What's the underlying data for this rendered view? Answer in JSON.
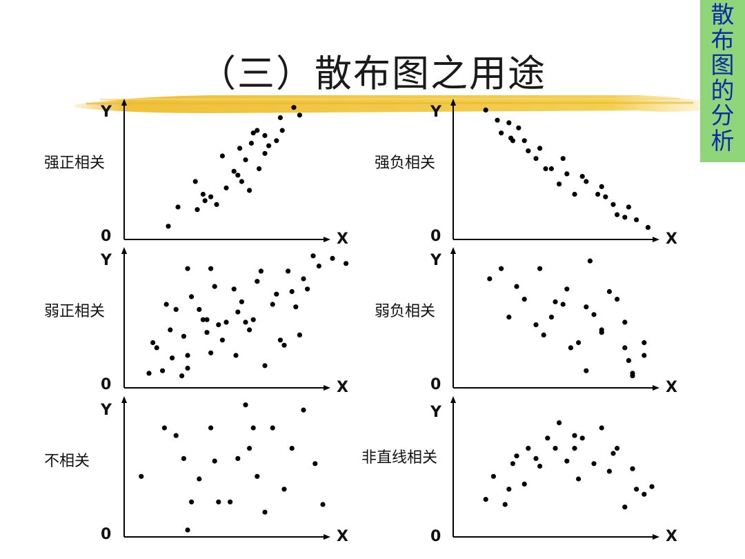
{
  "slide": {
    "title": "（三）散布图之用途",
    "side_tab": "散布图的分析"
  },
  "chart_data": [
    {
      "type": "scatter",
      "title": "强正相关",
      "xlabel": "X",
      "ylabel": "Y",
      "origin_label": "0",
      "points": [
        [
          0.2,
          0.05
        ],
        [
          0.25,
          0.2
        ],
        [
          0.35,
          0.18
        ],
        [
          0.34,
          0.4
        ],
        [
          0.38,
          0.3
        ],
        [
          0.42,
          0.28
        ],
        [
          0.39,
          0.25
        ],
        [
          0.45,
          0.22
        ],
        [
          0.5,
          0.35
        ],
        [
          0.54,
          0.48
        ],
        [
          0.48,
          0.6
        ],
        [
          0.56,
          0.45
        ],
        [
          0.58,
          0.4
        ],
        [
          0.62,
          0.33
        ],
        [
          0.67,
          0.5
        ],
        [
          0.6,
          0.57
        ],
        [
          0.63,
          0.7
        ],
        [
          0.7,
          0.62
        ],
        [
          0.72,
          0.68
        ],
        [
          0.7,
          0.76
        ],
        [
          0.76,
          0.72
        ],
        [
          0.79,
          0.8
        ],
        [
          0.88,
          0.92
        ],
        [
          0.78,
          0.9
        ],
        [
          0.85,
          0.98
        ],
        [
          0.66,
          0.8
        ],
        [
          0.57,
          0.66
        ],
        [
          0.64,
          0.78
        ]
      ]
    },
    {
      "type": "scatter",
      "title": "强负相关",
      "xlabel": "X",
      "ylabel": "Y",
      "origin_label": "0",
      "points": [
        [
          0.14,
          0.96
        ],
        [
          0.2,
          0.88
        ],
        [
          0.22,
          0.78
        ],
        [
          0.26,
          0.86
        ],
        [
          0.28,
          0.72
        ],
        [
          0.31,
          0.82
        ],
        [
          0.34,
          0.72
        ],
        [
          0.36,
          0.64
        ],
        [
          0.4,
          0.58
        ],
        [
          0.42,
          0.66
        ],
        [
          0.45,
          0.5
        ],
        [
          0.48,
          0.5
        ],
        [
          0.52,
          0.38
        ],
        [
          0.54,
          0.58
        ],
        [
          0.56,
          0.46
        ],
        [
          0.6,
          0.3
        ],
        [
          0.64,
          0.44
        ],
        [
          0.66,
          0.4
        ],
        [
          0.72,
          0.3
        ],
        [
          0.76,
          0.28
        ],
        [
          0.8,
          0.22
        ],
        [
          0.82,
          0.14
        ],
        [
          0.86,
          0.12
        ],
        [
          0.88,
          0.2
        ],
        [
          0.92,
          0.1
        ],
        [
          0.98,
          0.04
        ],
        [
          0.27,
          0.74
        ],
        [
          0.74,
          0.36
        ]
      ]
    },
    {
      "type": "scatter",
      "title": "弱正相关",
      "xlabel": "X",
      "ylabel": "Y",
      "origin_label": "0",
      "points": [
        [
          0.1,
          0.06
        ],
        [
          0.12,
          0.3
        ],
        [
          0.14,
          0.26
        ],
        [
          0.17,
          0.08
        ],
        [
          0.19,
          0.6
        ],
        [
          0.21,
          0.4
        ],
        [
          0.22,
          0.18
        ],
        [
          0.24,
          0.56
        ],
        [
          0.27,
          0.04
        ],
        [
          0.28,
          0.35
        ],
        [
          0.3,
          0.1
        ],
        [
          0.3,
          0.2
        ],
        [
          0.3,
          0.88
        ],
        [
          0.32,
          0.66
        ],
        [
          0.36,
          0.56
        ],
        [
          0.38,
          0.48
        ],
        [
          0.4,
          0.38
        ],
        [
          0.42,
          0.22
        ],
        [
          0.4,
          0.48
        ],
        [
          0.42,
          0.88
        ],
        [
          0.44,
          0.74
        ],
        [
          0.46,
          0.44
        ],
        [
          0.48,
          0.32
        ],
        [
          0.5,
          0.46
        ],
        [
          0.54,
          0.72
        ],
        [
          0.55,
          0.2
        ],
        [
          0.56,
          0.54
        ],
        [
          0.58,
          0.62
        ],
        [
          0.6,
          0.46
        ],
        [
          0.62,
          0.4
        ],
        [
          0.64,
          0.48
        ],
        [
          0.66,
          0.78
        ],
        [
          0.68,
          0.86
        ],
        [
          0.7,
          0.12
        ],
        [
          0.74,
          0.6
        ],
        [
          0.76,
          0.68
        ],
        [
          0.78,
          0.32
        ],
        [
          0.8,
          0.28
        ],
        [
          0.82,
          0.86
        ],
        [
          0.84,
          0.7
        ],
        [
          0.86,
          0.58
        ],
        [
          0.88,
          0.36
        ],
        [
          0.9,
          0.8
        ],
        [
          0.92,
          0.72
        ],
        [
          0.95,
          0.98
        ],
        [
          0.98,
          0.9
        ],
        [
          1.05,
          0.96
        ],
        [
          1.12,
          0.92
        ]
      ]
    },
    {
      "type": "scatter",
      "title": "弱负相关",
      "xlabel": "X",
      "ylabel": "Y",
      "origin_label": "0",
      "points": [
        [
          0.16,
          0.8
        ],
        [
          0.22,
          0.88
        ],
        [
          0.26,
          0.5
        ],
        [
          0.3,
          0.74
        ],
        [
          0.34,
          0.64
        ],
        [
          0.4,
          0.44
        ],
        [
          0.42,
          0.88
        ],
        [
          0.44,
          0.36
        ],
        [
          0.48,
          0.5
        ],
        [
          0.5,
          0.62
        ],
        [
          0.54,
          0.6
        ],
        [
          0.56,
          0.72
        ],
        [
          0.58,
          0.26
        ],
        [
          0.62,
          0.3
        ],
        [
          0.66,
          0.08
        ],
        [
          0.66,
          0.58
        ],
        [
          0.68,
          0.94
        ],
        [
          0.7,
          0.52
        ],
        [
          0.74,
          0.4
        ],
        [
          0.74,
          0.38
        ],
        [
          0.78,
          0.7
        ],
        [
          0.82,
          0.64
        ],
        [
          0.86,
          0.46
        ],
        [
          0.86,
          0.26
        ],
        [
          0.88,
          0.16
        ],
        [
          0.9,
          0.06
        ],
        [
          0.9,
          0.04
        ],
        [
          0.96,
          0.2
        ],
        [
          0.96,
          0.3
        ]
      ]
    },
    {
      "type": "scatter",
      "title": "不相关",
      "xlabel": "X",
      "ylabel": "Y",
      "origin_label": "0",
      "points": [
        [
          0.06,
          0.42
        ],
        [
          0.18,
          0.8
        ],
        [
          0.24,
          0.74
        ],
        [
          0.28,
          0.56
        ],
        [
          0.3,
          0.0
        ],
        [
          0.32,
          0.22
        ],
        [
          0.36,
          0.4
        ],
        [
          0.42,
          0.8
        ],
        [
          0.44,
          0.54
        ],
        [
          0.46,
          0.22
        ],
        [
          0.52,
          0.22
        ],
        [
          0.56,
          0.56
        ],
        [
          0.6,
          0.98
        ],
        [
          0.62,
          0.64
        ],
        [
          0.64,
          0.8
        ],
        [
          0.66,
          0.42
        ],
        [
          0.7,
          0.14
        ],
        [
          0.74,
          0.8
        ],
        [
          0.8,
          0.32
        ],
        [
          0.84,
          0.64
        ],
        [
          0.9,
          0.94
        ],
        [
          0.96,
          0.52
        ],
        [
          1.0,
          0.2
        ]
      ]
    },
    {
      "type": "scatter",
      "title": "非直线相关",
      "xlabel": "X",
      "ylabel": "Y",
      "origin_label": "0",
      "points": [
        [
          0.14,
          0.24
        ],
        [
          0.18,
          0.42
        ],
        [
          0.24,
          0.2
        ],
        [
          0.26,
          0.32
        ],
        [
          0.28,
          0.52
        ],
        [
          0.3,
          0.58
        ],
        [
          0.34,
          0.36
        ],
        [
          0.36,
          0.64
        ],
        [
          0.4,
          0.56
        ],
        [
          0.42,
          0.5
        ],
        [
          0.46,
          0.72
        ],
        [
          0.5,
          0.64
        ],
        [
          0.52,
          0.84
        ],
        [
          0.56,
          0.54
        ],
        [
          0.6,
          0.64
        ],
        [
          0.62,
          0.4
        ],
        [
          0.64,
          0.72
        ],
        [
          0.7,
          0.52
        ],
        [
          0.74,
          0.8
        ],
        [
          0.78,
          0.46
        ],
        [
          0.8,
          0.6
        ],
        [
          0.82,
          0.64
        ],
        [
          0.86,
          0.18
        ],
        [
          0.9,
          0.48
        ],
        [
          0.92,
          0.32
        ],
        [
          0.96,
          0.28
        ],
        [
          1.0,
          0.34
        ],
        [
          0.6,
          0.74
        ]
      ]
    }
  ]
}
